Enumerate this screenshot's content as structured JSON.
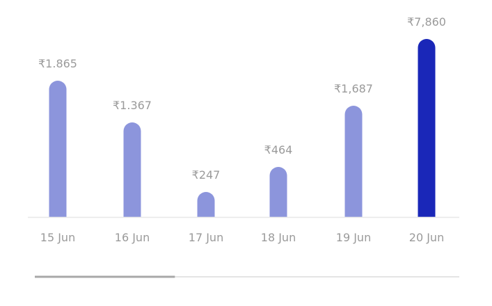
{
  "chart_data": {
    "type": "bar",
    "categories": [
      "15 Jun",
      "16 Jun",
      "17 Jun",
      "18 Jun",
      "19 Jun",
      "20 Jun"
    ],
    "values": [
      1865,
      1367,
      247,
      464,
      1687,
      7860
    ],
    "value_labels": [
      "₹1.865",
      "₹1.367",
      "₹247",
      "₹464",
      "₹1,687",
      "₹7,860"
    ],
    "selected_index": 5,
    "colors": {
      "bar": "#8c95dc",
      "bar_selected": "#1a27b8",
      "baseline": "#e8e8e8",
      "label": "#9a9a9a",
      "scroll_thumb": "#a8a8a8",
      "scroll_track": "#dcdcdc"
    },
    "scroll_position": 0.33
  }
}
